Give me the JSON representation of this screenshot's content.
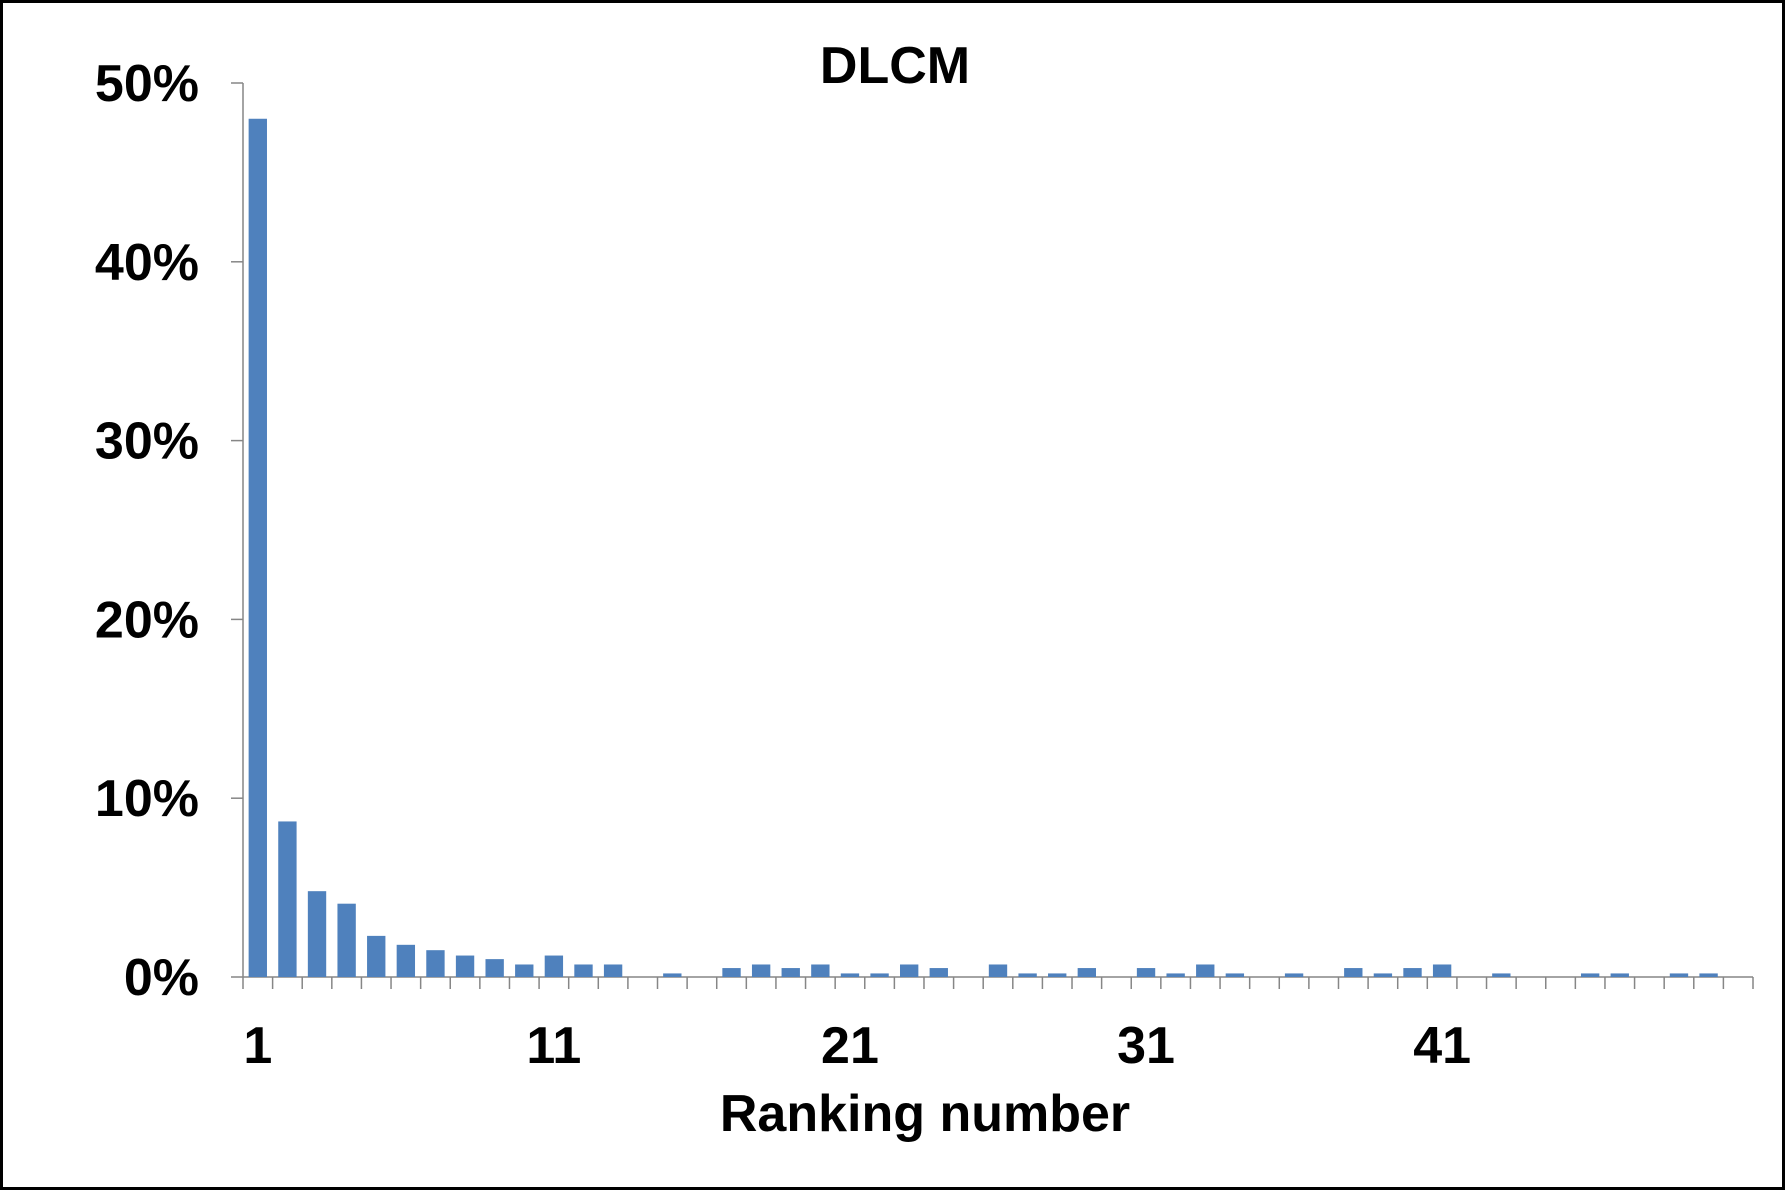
{
  "chart_data": {
    "type": "bar",
    "title": "DLCM",
    "xlabel": "Ranking number",
    "ylabel": "",
    "ylim": [
      0,
      0.5
    ],
    "yticks": [
      0,
      0.1,
      0.2,
      0.3,
      0.4,
      0.5
    ],
    "ytick_labels": [
      "0%",
      "10%",
      "20%",
      "30%",
      "40%",
      "50%"
    ],
    "xtick_labels": [
      "1",
      "11",
      "21",
      "31",
      "41"
    ],
    "xtick_categories": [
      1,
      11,
      21,
      31,
      41
    ],
    "grid": false,
    "legend": "none",
    "bar_color": "#4F81BD",
    "categories": [
      1,
      2,
      3,
      4,
      5,
      6,
      7,
      8,
      9,
      10,
      11,
      12,
      13,
      14,
      15,
      16,
      17,
      18,
      19,
      20,
      21,
      22,
      23,
      24,
      25,
      26,
      27,
      28,
      29,
      30,
      31,
      32,
      33,
      34,
      35,
      36,
      37,
      38,
      39,
      40,
      41,
      42,
      43,
      44,
      45,
      46,
      47,
      48,
      49,
      50,
      51
    ],
    "values": [
      0.48,
      0.087,
      0.048,
      0.041,
      0.023,
      0.018,
      0.015,
      0.012,
      0.01,
      0.007,
      0.012,
      0.007,
      0.007,
      0.0,
      0.002,
      0.0,
      0.005,
      0.007,
      0.005,
      0.007,
      0.002,
      0.002,
      0.007,
      0.005,
      0.0,
      0.007,
      0.002,
      0.002,
      0.005,
      0.0,
      0.005,
      0.002,
      0.007,
      0.002,
      0.0,
      0.002,
      0.0,
      0.005,
      0.002,
      0.005,
      0.007,
      0.0,
      0.002,
      0.0,
      0.0,
      0.002,
      0.002,
      0.0,
      0.002,
      0.002,
      0.0
    ]
  }
}
